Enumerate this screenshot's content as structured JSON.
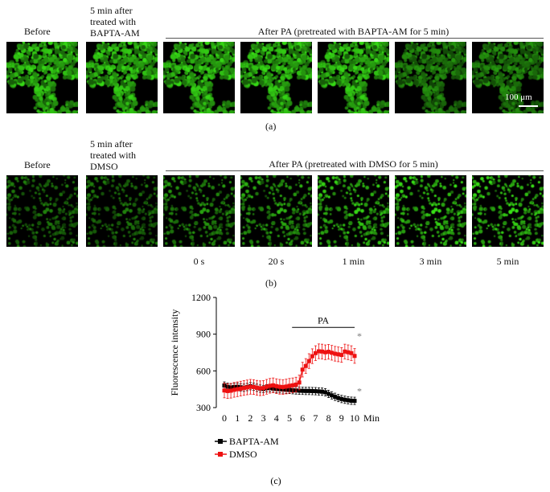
{
  "panel_a": {
    "label_before": "Before",
    "label_pretreat": [
      "5 min after",
      "treated with",
      "BAPTA-AM"
    ],
    "label_after": "After PA (pretreated with BAPTA-AM for 5 min)",
    "scale_bar": "100 μm",
    "caption": "(a)"
  },
  "panel_b": {
    "label_before": "Before",
    "label_pretreat": [
      "5 min after",
      "treated with",
      "DMSO"
    ],
    "label_after": "After PA (pretreated with DMSO for 5 min)",
    "times": [
      "0 s",
      "20 s",
      "1 min",
      "3 min",
      "5 min"
    ],
    "caption": "(b)"
  },
  "chart_data": {
    "type": "line",
    "ylabel": "Fluorescence intensity",
    "xlabel": "Min",
    "xlim": [
      0,
      10
    ],
    "ylim": [
      300,
      1200
    ],
    "yticks": [
      "300",
      "600",
      "900",
      "1200"
    ],
    "xticks": [
      "0",
      "1",
      "2",
      "3",
      "4",
      "5",
      "6",
      "7",
      "8",
      "9",
      "10"
    ],
    "annotation": "PA",
    "pa_range": [
      5.2,
      10
    ],
    "significance": "*",
    "x": [
      0,
      0.25,
      0.5,
      0.75,
      1,
      1.25,
      1.5,
      1.75,
      2,
      2.25,
      2.5,
      2.75,
      3,
      3.25,
      3.5,
      3.75,
      4,
      4.25,
      4.5,
      4.75,
      5,
      5.25,
      5.5,
      5.75,
      6,
      6.25,
      6.5,
      6.75,
      7,
      7.25,
      7.5,
      7.75,
      8,
      8.25,
      8.5,
      8.75,
      9,
      9.25,
      9.5,
      9.75,
      10
    ],
    "series": [
      {
        "name": "BAPTA-AM",
        "color": "#000000",
        "error": 30,
        "values": [
          480,
          470,
          465,
          468,
          470,
          466,
          462,
          468,
          475,
          470,
          462,
          455,
          452,
          458,
          460,
          455,
          452,
          450,
          448,
          446,
          444,
          442,
          440,
          438,
          437,
          436,
          436,
          435,
          434,
          432,
          430,
          425,
          412,
          400,
          388,
          378,
          370,
          364,
          360,
          356,
          355
        ]
      },
      {
        "name": "DMSO",
        "color": "#ee1111",
        "error": 60,
        "values": [
          440,
          435,
          438,
          445,
          450,
          455,
          460,
          465,
          470,
          468,
          462,
          458,
          460,
          470,
          478,
          482,
          475,
          470,
          468,
          472,
          478,
          482,
          488,
          505,
          610,
          640,
          680,
          720,
          745,
          760,
          758,
          752,
          756,
          748,
          740,
          735,
          730,
          758,
          752,
          745,
          722
        ]
      }
    ],
    "legend": "bottom-left",
    "caption": "(c)"
  }
}
